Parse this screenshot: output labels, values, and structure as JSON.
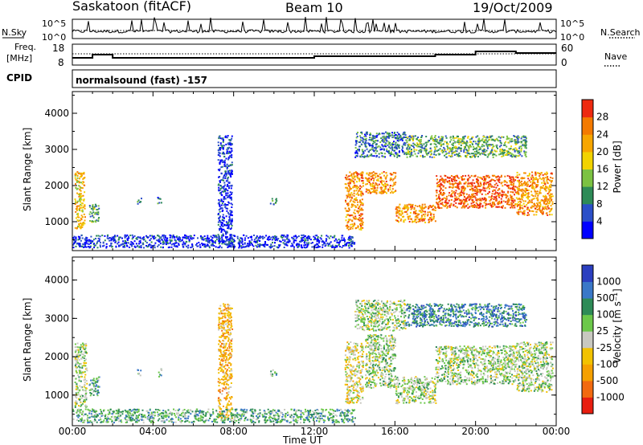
{
  "header": {
    "station": "Saskatoon (fitACF)",
    "beam": "Beam 10",
    "date": "19/Oct/2009"
  },
  "nsky_panel": {
    "left_label": "N.Sky",
    "right_label": "N.Search",
    "left_ticks": [
      "10^5",
      "10^0"
    ],
    "right_ticks": [
      "10^5",
      "10^0"
    ]
  },
  "freq_panel": {
    "left_label_1": "Freq.",
    "left_label_2": "[MHz]",
    "left_ticks": [
      "18",
      "8"
    ],
    "right_ticks": [
      "60",
      "0"
    ],
    "right_label": "Nave"
  },
  "cpid": {
    "label": "CPID",
    "value": "normalsound (fast) -157"
  },
  "chart_data": [
    {
      "type": "heatmap",
      "name_printed": "Power",
      "ylabel": "Slant Range [km]",
      "xlabel": "Time UT",
      "x_ticks": [
        "00:00",
        "04:00",
        "08:00",
        "12:00",
        "16:00",
        "20:00",
        "00:00"
      ],
      "y_ticks": [
        "1000",
        "2000",
        "3000",
        "4000"
      ],
      "ylim": [
        200,
        4600
      ],
      "xlim_hours": [
        0,
        24
      ],
      "colorbar": {
        "label": "Power [dB]",
        "ticks": [
          "4",
          "8",
          "12",
          "16",
          "20",
          "24",
          "28"
        ],
        "colors": [
          "#0000ff",
          "#2b4fc8",
          "#2e8b57",
          "#7cc242",
          "#f2d300",
          "#f7a600",
          "#f47a00",
          "#ee2a10"
        ]
      },
      "regions": [
        {
          "t0": 0.1,
          "t1": 0.6,
          "r0": 800,
          "r1": 2400,
          "color_index": 5
        },
        {
          "t0": 0.8,
          "t1": 1.3,
          "r0": 1000,
          "r1": 1500,
          "color_index": 3
        },
        {
          "t0": 3.2,
          "t1": 3.4,
          "r0": 1500,
          "r1": 1700,
          "color_index": 2
        },
        {
          "t0": 4.2,
          "t1": 4.4,
          "r0": 1500,
          "r1": 1700,
          "color_index": 2
        },
        {
          "t0": 7.2,
          "t1": 7.9,
          "r0": 400,
          "r1": 3400,
          "color_index": 1
        },
        {
          "t0": 9.8,
          "t1": 10.1,
          "r0": 1500,
          "r1": 1700,
          "color_index": 2
        },
        {
          "t0": 13.5,
          "t1": 14.4,
          "r0": 800,
          "r1": 2400,
          "color_index": 6
        },
        {
          "t0": 14.5,
          "t1": 16.0,
          "r0": 1800,
          "r1": 2400,
          "color_index": 6
        },
        {
          "t0": 16.0,
          "t1": 18.0,
          "r0": 1000,
          "r1": 1500,
          "color_index": 6
        },
        {
          "t0": 18.0,
          "t1": 22.0,
          "r0": 1400,
          "r1": 2300,
          "color_index": 7
        },
        {
          "t0": 22.0,
          "t1": 23.8,
          "r0": 1200,
          "r1": 2400,
          "color_index": 6
        },
        {
          "t0": 0.0,
          "t1": 14.0,
          "r0": 300,
          "r1": 650,
          "color_index": 1
        },
        {
          "t0": 14.0,
          "t1": 16.5,
          "r0": 2800,
          "r1": 3500,
          "color_index": 2
        },
        {
          "t0": 16.5,
          "t1": 22.5,
          "r0": 2800,
          "r1": 3400,
          "color_index": 3
        }
      ]
    },
    {
      "type": "heatmap",
      "name_printed": "Velocity",
      "ylabel": "Slant Range [km]",
      "xlabel": "Time UT",
      "x_ticks": [
        "00:00",
        "04:00",
        "08:00",
        "12:00",
        "16:00",
        "20:00",
        "00:00"
      ],
      "y_ticks": [
        "1000",
        "2000",
        "3000",
        "4000"
      ],
      "ylim": [
        200,
        4600
      ],
      "xlim_hours": [
        0,
        24
      ],
      "colorbar": {
        "label": "Velocity [m s⁻¹]",
        "ticks": [
          "1000",
          "500",
          "100",
          "25",
          "-25",
          "-100",
          "-500",
          "-1000"
        ],
        "colors": [
          "#2b3fc0",
          "#3a78c8",
          "#2e8b57",
          "#6cc84a",
          "#c8c8c0",
          "#f2c200",
          "#f5a000",
          "#f26a10",
          "#e81e10"
        ]
      },
      "regions": [
        {
          "t0": 0.1,
          "t1": 0.7,
          "r0": 700,
          "r1": 2400,
          "color_index": 4
        },
        {
          "t0": 0.8,
          "t1": 1.3,
          "r0": 1000,
          "r1": 1500,
          "color_index": 3
        },
        {
          "t0": 3.2,
          "t1": 3.4,
          "r0": 1500,
          "r1": 1700,
          "color_index": 3
        },
        {
          "t0": 4.2,
          "t1": 4.4,
          "r0": 1500,
          "r1": 1700,
          "color_index": 3
        },
        {
          "t0": 7.2,
          "t1": 7.9,
          "r0": 400,
          "r1": 3400,
          "color_index": 6
        },
        {
          "t0": 9.8,
          "t1": 10.1,
          "r0": 1500,
          "r1": 1700,
          "color_index": 3
        },
        {
          "t0": 13.5,
          "t1": 14.4,
          "r0": 800,
          "r1": 2400,
          "color_index": 5
        },
        {
          "t0": 14.5,
          "t1": 16.0,
          "r0": 1200,
          "r1": 2600,
          "color_index": 4
        },
        {
          "t0": 16.0,
          "t1": 18.0,
          "r0": 800,
          "r1": 1500,
          "color_index": 4
        },
        {
          "t0": 18.0,
          "t1": 22.0,
          "r0": 1300,
          "r1": 2300,
          "color_index": 4
        },
        {
          "t0": 22.0,
          "t1": 23.8,
          "r0": 1100,
          "r1": 2400,
          "color_index": 4
        },
        {
          "t0": 0.0,
          "t1": 14.0,
          "r0": 300,
          "r1": 650,
          "color_index": 3
        },
        {
          "t0": 14.0,
          "t1": 16.5,
          "r0": 2700,
          "r1": 3500,
          "color_index": 4
        },
        {
          "t0": 16.5,
          "t1": 22.5,
          "r0": 2800,
          "r1": 3400,
          "color_index": 2
        }
      ]
    }
  ]
}
